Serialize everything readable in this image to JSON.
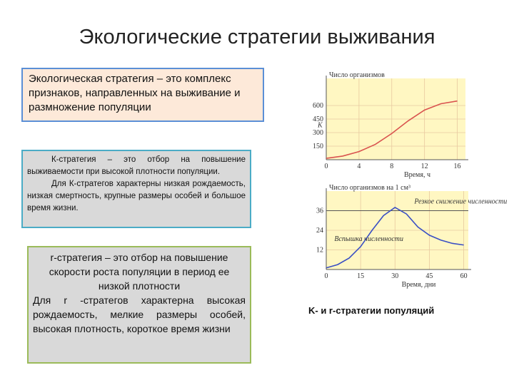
{
  "title": "Экологические стратегии выживания",
  "definition": "Экологическая стратегия – это комплекс признаков, направленных на выживание и размножение популяции",
  "k_box": [
    "К-стратегия – это отбор на повышение выживаемости при высокой плотности популяции.",
    "Для К-стратегов характерны низкая рождаемость, низкая смертность, крупные размеры особей и большое время жизни."
  ],
  "r_box": [
    "r-стратегия – это отбор на повышение скорости роста популяции в период ее низкой плотности",
    "Для r -стратегов характерна высокая рождаемость, мелкие размеры особей, высокая плотность, короткое время жизни"
  ],
  "caption": "K- и r-стратегии популяций",
  "chart_data": [
    {
      "type": "line",
      "ylabel": "Число организмов",
      "xlabel": "Время, ч",
      "annotations": [
        "K"
      ],
      "series": [
        {
          "color": "#d9534f",
          "x": [
            0,
            2,
            4,
            6,
            8,
            10,
            12,
            14,
            16
          ],
          "values": [
            15,
            40,
            90,
            170,
            290,
            430,
            550,
            620,
            650
          ]
        }
      ],
      "xlim": [
        0,
        17
      ],
      "ylim": [
        0,
        900
      ],
      "xticks": [
        0,
        4,
        8,
        12,
        16
      ],
      "yticks": [
        150,
        300,
        450,
        600
      ],
      "grid": true
    },
    {
      "type": "line",
      "ylabel": "Число организмов на 1 см³",
      "xlabel": "Время, дни",
      "annotations": [
        "Резкое снижение численности",
        "Вспышка численности"
      ],
      "series": [
        {
          "color": "#3a4fc4",
          "x": [
            0,
            5,
            10,
            15,
            20,
            25,
            30,
            35,
            40,
            45,
            50,
            55,
            60
          ],
          "values": [
            1,
            3,
            7,
            14,
            24,
            33,
            38,
            34,
            26,
            21,
            18,
            16,
            15
          ]
        }
      ],
      "hline": 36,
      "xlim": [
        0,
        62
      ],
      "ylim": [
        0,
        48
      ],
      "xticks": [
        0,
        15,
        30,
        45,
        60
      ],
      "yticks": [
        12,
        24,
        36
      ],
      "grid": true
    }
  ]
}
